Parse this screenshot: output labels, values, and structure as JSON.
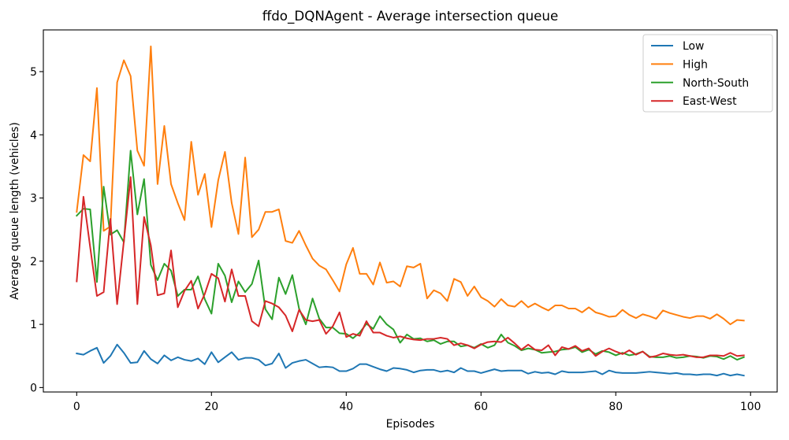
{
  "chart_data": {
    "type": "line",
    "title": "ffdo_DQNAgent - Average intersection queue",
    "xlabel": "Episodes",
    "ylabel": "Average queue length (vehicles)",
    "xlim": [
      -4.95,
      103.95
    ],
    "ylim": [
      -0.07,
      5.66
    ],
    "xticks": [
      0,
      20,
      40,
      60,
      80,
      100
    ],
    "yticks": [
      0,
      1,
      2,
      3,
      4,
      5
    ],
    "grid": false,
    "legend_position": "top-right",
    "x": [
      0,
      1,
      2,
      3,
      4,
      5,
      6,
      7,
      8,
      9,
      10,
      11,
      12,
      13,
      14,
      15,
      16,
      17,
      18,
      19,
      20,
      21,
      22,
      23,
      24,
      25,
      26,
      27,
      28,
      29,
      30,
      31,
      32,
      33,
      34,
      35,
      36,
      37,
      38,
      39,
      40,
      41,
      42,
      43,
      44,
      45,
      46,
      47,
      48,
      49,
      50,
      51,
      52,
      53,
      54,
      55,
      56,
      57,
      58,
      59,
      60,
      61,
      62,
      63,
      64,
      65,
      66,
      67,
      68,
      69,
      70,
      71,
      72,
      73,
      74,
      75,
      76,
      77,
      78,
      79,
      80,
      81,
      82,
      83,
      84,
      85,
      86,
      87,
      88,
      89,
      90,
      91,
      92,
      93,
      94,
      95,
      96,
      97,
      98,
      99
    ],
    "series": [
      {
        "name": "Low",
        "color": "#1f77b4",
        "values": [
          0.54,
          0.52,
          0.58,
          0.63,
          0.39,
          0.5,
          0.68,
          0.55,
          0.39,
          0.4,
          0.58,
          0.45,
          0.38,
          0.51,
          0.43,
          0.48,
          0.44,
          0.42,
          0.46,
          0.37,
          0.56,
          0.4,
          0.48,
          0.56,
          0.44,
          0.47,
          0.47,
          0.44,
          0.35,
          0.38,
          0.54,
          0.31,
          0.39,
          0.42,
          0.44,
          0.38,
          0.32,
          0.33,
          0.32,
          0.26,
          0.26,
          0.3,
          0.37,
          0.37,
          0.33,
          0.29,
          0.26,
          0.31,
          0.3,
          0.28,
          0.24,
          0.27,
          0.28,
          0.28,
          0.25,
          0.27,
          0.24,
          0.31,
          0.26,
          0.26,
          0.23,
          0.26,
          0.29,
          0.26,
          0.27,
          0.27,
          0.27,
          0.22,
          0.25,
          0.23,
          0.24,
          0.21,
          0.26,
          0.24,
          0.24,
          0.24,
          0.25,
          0.26,
          0.21,
          0.27,
          0.24,
          0.23,
          0.23,
          0.23,
          0.24,
          0.25,
          0.24,
          0.23,
          0.22,
          0.23,
          0.21,
          0.21,
          0.2,
          0.21,
          0.21,
          0.19,
          0.22,
          0.19,
          0.21,
          0.19
        ]
      },
      {
        "name": "High",
        "color": "#ff7f0e",
        "values": [
          2.78,
          3.68,
          3.58,
          4.74,
          2.48,
          2.55,
          4.83,
          5.18,
          4.93,
          3.75,
          3.51,
          5.4,
          3.22,
          4.14,
          3.22,
          2.92,
          2.65,
          3.89,
          3.05,
          3.38,
          2.54,
          3.28,
          3.73,
          2.92,
          2.43,
          3.64,
          2.38,
          2.5,
          2.78,
          2.78,
          2.82,
          2.32,
          2.29,
          2.48,
          2.25,
          2.04,
          1.93,
          1.87,
          1.7,
          1.52,
          1.95,
          2.21,
          1.8,
          1.8,
          1.63,
          1.98,
          1.66,
          1.68,
          1.6,
          1.92,
          1.9,
          1.96,
          1.41,
          1.54,
          1.49,
          1.37,
          1.72,
          1.67,
          1.45,
          1.6,
          1.43,
          1.37,
          1.28,
          1.4,
          1.3,
          1.28,
          1.37,
          1.27,
          1.33,
          1.27,
          1.22,
          1.3,
          1.3,
          1.25,
          1.25,
          1.19,
          1.27,
          1.19,
          1.16,
          1.12,
          1.13,
          1.23,
          1.15,
          1.1,
          1.16,
          1.13,
          1.09,
          1.22,
          1.18,
          1.15,
          1.12,
          1.1,
          1.13,
          1.13,
          1.09,
          1.16,
          1.09,
          1.0,
          1.07,
          1.06
        ]
      },
      {
        "name": "North-South",
        "color": "#2ca02c",
        "values": [
          2.72,
          2.83,
          2.82,
          1.67,
          3.18,
          2.42,
          2.49,
          2.3,
          3.75,
          2.74,
          3.3,
          1.94,
          1.7,
          1.96,
          1.85,
          1.45,
          1.55,
          1.55,
          1.76,
          1.4,
          1.17,
          1.96,
          1.77,
          1.35,
          1.68,
          1.51,
          1.64,
          2.01,
          1.24,
          1.08,
          1.74,
          1.48,
          1.78,
          1.25,
          1.0,
          1.41,
          1.09,
          0.95,
          0.95,
          0.86,
          0.85,
          0.78,
          0.87,
          1.01,
          0.93,
          1.13,
          1.0,
          0.92,
          0.71,
          0.84,
          0.77,
          0.78,
          0.73,
          0.75,
          0.69,
          0.73,
          0.73,
          0.65,
          0.67,
          0.63,
          0.69,
          0.63,
          0.67,
          0.84,
          0.71,
          0.66,
          0.59,
          0.62,
          0.6,
          0.55,
          0.56,
          0.57,
          0.6,
          0.61,
          0.64,
          0.56,
          0.6,
          0.53,
          0.58,
          0.56,
          0.51,
          0.55,
          0.51,
          0.53,
          0.57,
          0.49,
          0.48,
          0.48,
          0.5,
          0.47,
          0.48,
          0.5,
          0.49,
          0.47,
          0.5,
          0.49,
          0.45,
          0.5,
          0.44,
          0.48
        ]
      },
      {
        "name": "East-West",
        "color": "#d62728",
        "values": [
          1.68,
          3.02,
          2.22,
          1.45,
          1.51,
          2.67,
          1.32,
          2.32,
          3.33,
          1.32,
          2.7,
          2.25,
          1.46,
          1.49,
          2.17,
          1.27,
          1.53,
          1.69,
          1.25,
          1.48,
          1.8,
          1.73,
          1.36,
          1.87,
          1.45,
          1.45,
          1.05,
          0.97,
          1.37,
          1.33,
          1.27,
          1.14,
          0.89,
          1.23,
          1.07,
          1.05,
          1.07,
          0.85,
          0.97,
          1.19,
          0.8,
          0.85,
          0.82,
          1.05,
          0.87,
          0.87,
          0.82,
          0.79,
          0.81,
          0.78,
          0.76,
          0.75,
          0.77,
          0.77,
          0.79,
          0.77,
          0.67,
          0.7,
          0.67,
          0.62,
          0.68,
          0.72,
          0.73,
          0.72,
          0.79,
          0.7,
          0.6,
          0.68,
          0.6,
          0.59,
          0.67,
          0.51,
          0.64,
          0.61,
          0.66,
          0.58,
          0.62,
          0.5,
          0.57,
          0.62,
          0.57,
          0.53,
          0.59,
          0.52,
          0.57,
          0.48,
          0.5,
          0.54,
          0.52,
          0.51,
          0.52,
          0.5,
          0.48,
          0.48,
          0.51,
          0.51,
          0.5,
          0.55,
          0.5,
          0.51
        ]
      }
    ]
  }
}
